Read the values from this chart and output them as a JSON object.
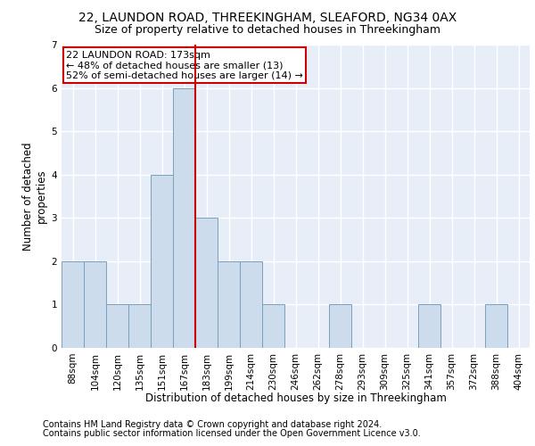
{
  "title1": "22, LAUNDON ROAD, THREEKINGHAM, SLEAFORD, NG34 0AX",
  "title2": "Size of property relative to detached houses in Threekingham",
  "xlabel": "Distribution of detached houses by size in Threekingham",
  "ylabel": "Number of detached\nproperties",
  "footer1": "Contains HM Land Registry data © Crown copyright and database right 2024.",
  "footer2": "Contains public sector information licensed under the Open Government Licence v3.0.",
  "annotation_line1": "22 LAUNDON ROAD: 173sqm",
  "annotation_line2": "← 48% of detached houses are smaller (13)",
  "annotation_line3": "52% of semi-detached houses are larger (14) →",
  "bin_labels": [
    "88sqm",
    "104sqm",
    "120sqm",
    "135sqm",
    "151sqm",
    "167sqm",
    "183sqm",
    "199sqm",
    "214sqm",
    "230sqm",
    "246sqm",
    "262sqm",
    "278sqm",
    "293sqm",
    "309sqm",
    "325sqm",
    "341sqm",
    "357sqm",
    "372sqm",
    "388sqm",
    "404sqm"
  ],
  "bar_values": [
    2,
    2,
    1,
    1,
    4,
    6,
    3,
    2,
    2,
    1,
    0,
    0,
    1,
    0,
    0,
    0,
    1,
    0,
    0,
    1,
    0
  ],
  "bar_color": "#ccdcec",
  "bar_edge_color": "#7aa0bb",
  "ref_line_index": 5,
  "ref_line_color": "#cc0000",
  "ylim": [
    0,
    7
  ],
  "yticks": [
    0,
    1,
    2,
    3,
    4,
    5,
    6,
    7
  ],
  "background_color": "#e8eef8",
  "annotation_box_color": "#cc0000",
  "grid_color": "#ffffff",
  "title1_fontsize": 10,
  "title2_fontsize": 9,
  "axis_label_fontsize": 8.5,
  "tick_fontsize": 7.5,
  "footer_fontsize": 7,
  "annotation_fontsize": 8
}
